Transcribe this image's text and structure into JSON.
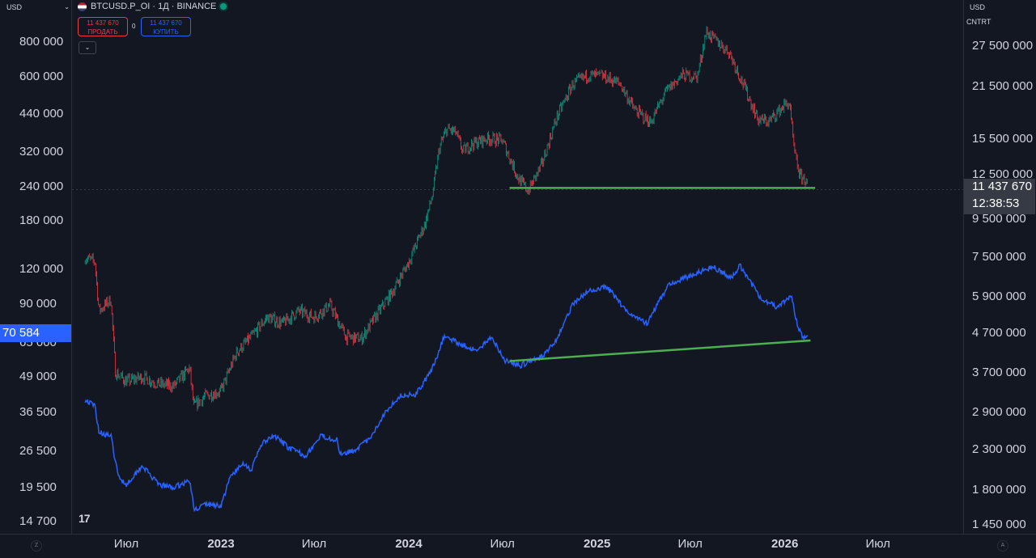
{
  "header": {
    "symbol_line": "BTCUSD.P_OI · 1Д · BINANCE",
    "sell_value": "11 437 670",
    "sell_label": "ПРОДАТЬ",
    "spread": "0",
    "buy_value": "11 437 670",
    "buy_label": "КУПИТЬ",
    "collapse_icon": "chevron-down-icon"
  },
  "left_scale": {
    "unit": "USD",
    "current_value_badge": "70 584",
    "badge_color": "#2962ff"
  },
  "right_scale": {
    "unit": "USD",
    "sub_unit": "CNTRT",
    "price_badge": "11 437 670",
    "countdown": "12:38:53"
  },
  "corner_buttons": {
    "left": "Z",
    "right": "A"
  },
  "logo": "17",
  "colors": {
    "background": "#131722",
    "up_candle": "#089981",
    "down_candle": "#f23645",
    "btc_line": "#2962ff",
    "trendline": "#4caf50"
  },
  "chart_data": {
    "type": "line",
    "title": "",
    "x_ticks": [
      {
        "label": "Июл",
        "date": "2022-07-01",
        "year": false
      },
      {
        "label": "2023",
        "date": "2023-01-01",
        "year": true
      },
      {
        "label": "Июл",
        "date": "2023-07-01",
        "year": false
      },
      {
        "label": "2024",
        "date": "2024-01-01",
        "year": true
      },
      {
        "label": "Июл",
        "date": "2024-07-01",
        "year": false
      },
      {
        "label": "2025",
        "date": "2025-01-01",
        "year": true
      },
      {
        "label": "Июл",
        "date": "2025-07-01",
        "year": false
      },
      {
        "label": "2026",
        "date": "2026-01-01",
        "year": true
      },
      {
        "label": "Июл",
        "date": "2026-07-01",
        "year": false
      }
    ],
    "left_axis": {
      "scale": "log",
      "range": [
        12500,
        1000000
      ],
      "ticks": [
        "800 000",
        "600 000",
        "440 000",
        "320 000",
        "240 000",
        "180 000",
        "120 000",
        "90 000",
        "65 000",
        "49 000",
        "36 500",
        "26 500",
        "19 500",
        "14 700"
      ]
    },
    "right_axis": {
      "scale": "log",
      "range": [
        1300000,
        32000000
      ],
      "ticks": [
        "27 500 000",
        "21 500 000",
        "15 500 000",
        "12 500 000",
        "9 500 000",
        "7 500 000",
        "5 900 000",
        "4 700 000",
        "3 700 000",
        "2 900 000",
        "2 300 000",
        "1 800 000",
        "1 450 000"
      ]
    },
    "series": [
      {
        "name": "BTCUSD.P_OI",
        "kind": "candlestick",
        "axis": "right",
        "points": [
          [
            "2022-04-12",
            7500000
          ],
          [
            "2022-05-01",
            7300000
          ],
          [
            "2022-05-09",
            5400000
          ],
          [
            "2022-06-01",
            5800000
          ],
          [
            "2022-06-10",
            3700000
          ],
          [
            "2022-07-01",
            3500000
          ],
          [
            "2022-08-01",
            3600000
          ],
          [
            "2022-09-01",
            3450000
          ],
          [
            "2022-10-01",
            3400000
          ],
          [
            "2022-11-01",
            3800000
          ],
          [
            "2022-11-09",
            3000000
          ],
          [
            "2022-12-01",
            3200000
          ],
          [
            "2023-01-01",
            3300000
          ],
          [
            "2023-02-01",
            4200000
          ],
          [
            "2023-03-01",
            4600000
          ],
          [
            "2023-04-01",
            5200000
          ],
          [
            "2023-05-01",
            5000000
          ],
          [
            "2023-06-01",
            5400000
          ],
          [
            "2023-07-01",
            5200000
          ],
          [
            "2023-08-01",
            5600000
          ],
          [
            "2023-09-01",
            4600000
          ],
          [
            "2023-10-01",
            4550000
          ],
          [
            "2023-11-01",
            5300000
          ],
          [
            "2023-12-01",
            6100000
          ],
          [
            "2024-01-01",
            7300000
          ],
          [
            "2024-02-01",
            9200000
          ],
          [
            "2024-02-15",
            10800000
          ],
          [
            "2024-03-01",
            14800000
          ],
          [
            "2024-03-15",
            16500000
          ],
          [
            "2024-04-01",
            16200000
          ],
          [
            "2024-04-15",
            14400000
          ],
          [
            "2024-05-01",
            15000000
          ],
          [
            "2024-06-01",
            15600000
          ],
          [
            "2024-07-01",
            15400000
          ],
          [
            "2024-08-01",
            12200000
          ],
          [
            "2024-08-20",
            11300000
          ],
          [
            "2024-09-15",
            13200000
          ],
          [
            "2024-10-15",
            17800000
          ],
          [
            "2024-11-15",
            21800000
          ],
          [
            "2024-12-15",
            23000000
          ],
          [
            "2025-01-15",
            22800000
          ],
          [
            "2025-02-15",
            21800000
          ],
          [
            "2025-03-15",
            18600000
          ],
          [
            "2025-04-15",
            17200000
          ],
          [
            "2025-05-15",
            20800000
          ],
          [
            "2025-06-15",
            23000000
          ],
          [
            "2025-07-15",
            22800000
          ],
          [
            "2025-08-01",
            30000000
          ],
          [
            "2025-08-15",
            28800000
          ],
          [
            "2025-09-15",
            26500000
          ],
          [
            "2025-10-15",
            21300000
          ],
          [
            "2025-11-10",
            17500000
          ],
          [
            "2025-12-01",
            17300000
          ],
          [
            "2026-01-01",
            19200000
          ],
          [
            "2026-01-10",
            19300000
          ],
          [
            "2026-01-20",
            14200000
          ],
          [
            "2026-01-30",
            12400000
          ],
          [
            "2026-02-10",
            12100000
          ],
          [
            "2026-02-15",
            11437670
          ]
        ]
      },
      {
        "name": "",
        "kind": "line",
        "axis": "left",
        "points": [
          [
            "2022-04-12",
            40500
          ],
          [
            "2022-05-01",
            38500
          ],
          [
            "2022-05-09",
            31000
          ],
          [
            "2022-06-01",
            30000
          ],
          [
            "2022-06-15",
            21500
          ],
          [
            "2022-07-01",
            20000
          ],
          [
            "2022-08-01",
            23500
          ],
          [
            "2022-09-01",
            20000
          ],
          [
            "2022-10-01",
            19500
          ],
          [
            "2022-11-01",
            20700
          ],
          [
            "2022-11-10",
            16200
          ],
          [
            "2022-12-01",
            17000
          ],
          [
            "2023-01-01",
            16800
          ],
          [
            "2023-01-20",
            21500
          ],
          [
            "2023-02-15",
            24000
          ],
          [
            "2023-03-01",
            22500
          ],
          [
            "2023-03-20",
            28000
          ],
          [
            "2023-04-15",
            30000
          ],
          [
            "2023-05-15",
            27000
          ],
          [
            "2023-06-15",
            25500
          ],
          [
            "2023-07-15",
            30000
          ],
          [
            "2023-08-15",
            29000
          ],
          [
            "2023-08-20",
            26000
          ],
          [
            "2023-09-15",
            26500
          ],
          [
            "2023-10-20",
            29500
          ],
          [
            "2023-11-15",
            36500
          ],
          [
            "2023-12-15",
            42000
          ],
          [
            "2024-01-15",
            42500
          ],
          [
            "2024-02-15",
            52000
          ],
          [
            "2024-03-10",
            69000
          ],
          [
            "2024-04-15",
            64000
          ],
          [
            "2024-05-15",
            61000
          ],
          [
            "2024-06-10",
            69000
          ],
          [
            "2024-07-05",
            56500
          ],
          [
            "2024-08-05",
            54000
          ],
          [
            "2024-09-15",
            58000
          ],
          [
            "2024-10-15",
            67500
          ],
          [
            "2024-11-15",
            90000
          ],
          [
            "2024-12-15",
            100000
          ],
          [
            "2025-01-20",
            104000
          ],
          [
            "2025-02-28",
            85000
          ],
          [
            "2025-04-08",
            76500
          ],
          [
            "2025-05-20",
            106000
          ],
          [
            "2025-07-15",
            117000
          ],
          [
            "2025-08-14",
            123000
          ],
          [
            "2025-09-20",
            112000
          ],
          [
            "2025-10-06",
            124000
          ],
          [
            "2025-11-15",
            95000
          ],
          [
            "2025-12-15",
            88000
          ],
          [
            "2026-01-14",
            96000
          ],
          [
            "2026-01-25",
            76000
          ],
          [
            "2026-02-05",
            68000
          ],
          [
            "2026-02-15",
            70584
          ]
        ]
      }
    ],
    "annotations": [
      {
        "type": "trendline",
        "axis": "right",
        "from": [
          "2024-07-15",
          11500000
        ],
        "to": [
          "2026-03-01",
          11500000
        ]
      },
      {
        "type": "trendline",
        "axis": "left",
        "from": [
          "2024-07-15",
          56000
        ],
        "to": [
          "2026-02-20",
          66500
        ]
      }
    ],
    "grid": false
  }
}
